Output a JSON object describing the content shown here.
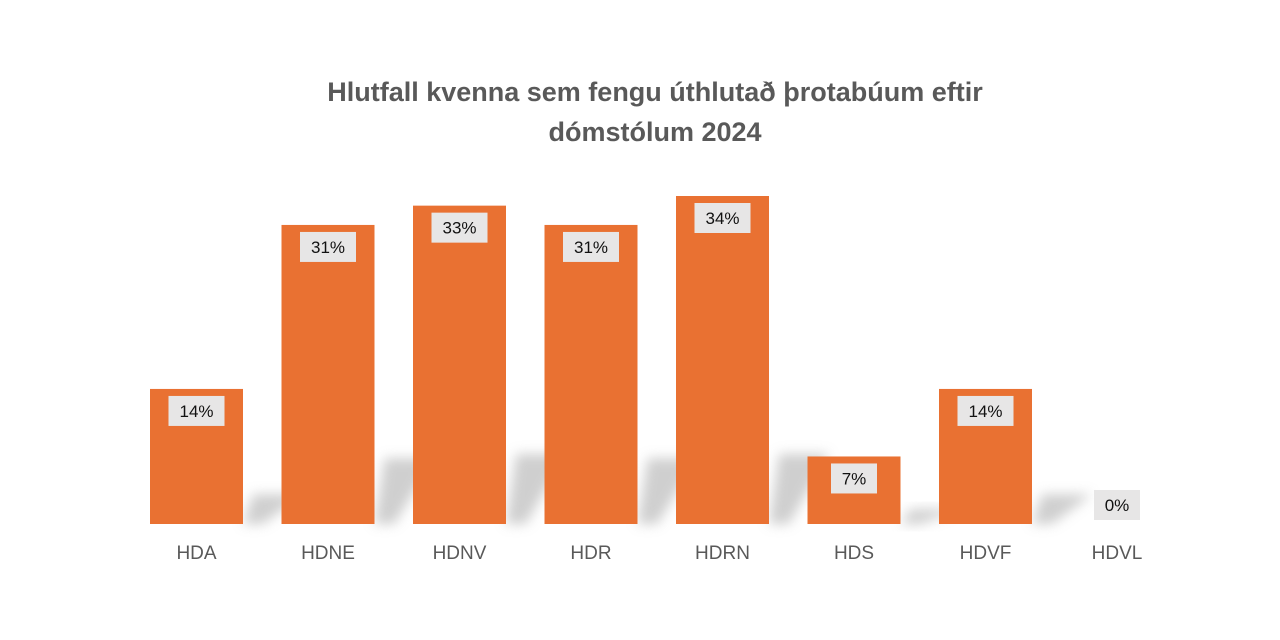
{
  "chart_data": {
    "type": "bar",
    "title_lines": [
      "Hlutfall kvenna sem fengu úthlutað þrotabúum eftir",
      "dómstólum 2024"
    ],
    "categories": [
      "HDA",
      "HDNE",
      "HDNV",
      "HDR",
      "HDRN",
      "HDS",
      "HDVF",
      "HDVL"
    ],
    "values": [
      14,
      31,
      33,
      31,
      34,
      7,
      14,
      0
    ],
    "data_labels": [
      "14%",
      "31%",
      "33%",
      "31%",
      "34%",
      "7%",
      "14%",
      "0%"
    ],
    "unit": "%",
    "ylim": [
      0,
      34
    ],
    "xlabel": "",
    "ylabel": "",
    "grid": false,
    "legend": "none",
    "colors": {
      "bar": "#E97132",
      "label_box": "#E7E6E6",
      "text": "#595959",
      "shadow": "#BFBFBF"
    }
  }
}
